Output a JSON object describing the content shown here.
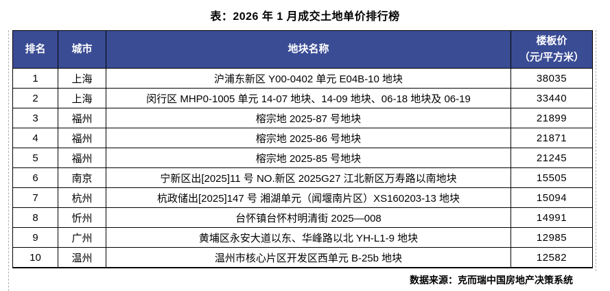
{
  "title": "表：2026 年 1 月成交土地单价排行榜",
  "table": {
    "headers": {
      "rank": "排名",
      "city": "城市",
      "parcel": "地块名称",
      "price_line1": "楼板价",
      "price_line2": "（元/平方米）"
    },
    "rows": [
      {
        "rank": "1",
        "city": "上海",
        "parcel": "沪浦东新区 Y00-0402 单元 E04B-10 地块",
        "price": "38035"
      },
      {
        "rank": "2",
        "city": "上海",
        "parcel": "闵行区 MHP0-1005 单元 14-07 地块、14-09 地块、06-18 地块及 06-19",
        "price": "33440"
      },
      {
        "rank": "3",
        "city": "福州",
        "parcel": "榕宗地 2025-87 号地块",
        "price": "21899"
      },
      {
        "rank": "4",
        "city": "福州",
        "parcel": "榕宗地 2025-86 号地块",
        "price": "21871"
      },
      {
        "rank": "5",
        "city": "福州",
        "parcel": "榕宗地 2025-85 号地块",
        "price": "21245"
      },
      {
        "rank": "6",
        "city": "南京",
        "parcel": "宁新区出[2025]11 号 NO.新区 2025G27 江北新区万寿路以南地块",
        "price": "15505"
      },
      {
        "rank": "7",
        "city": "杭州",
        "parcel": "杭政储出[2025]147 号  湘湖单元（闻堰南片区）XS160203-13 地块",
        "price": "15094"
      },
      {
        "rank": "8",
        "city": "忻州",
        "parcel": "台怀镇台怀村明清街 2025—008",
        "price": "14991"
      },
      {
        "rank": "9",
        "city": "广州",
        "parcel": "黄埔区永安大道以东、华峰路以北 YH-L1-9 地块",
        "price": "12985"
      },
      {
        "rank": "10",
        "city": "温州",
        "parcel": "温州市核心片区开发区西单元 B-25b 地块",
        "price": "12582"
      }
    ]
  },
  "footer": {
    "source": "数据来源：克而瑞中国房地产决策系统"
  },
  "colors": {
    "header_bg": "#3a4c94",
    "header_text": "#ffffff",
    "border": "#000000"
  }
}
